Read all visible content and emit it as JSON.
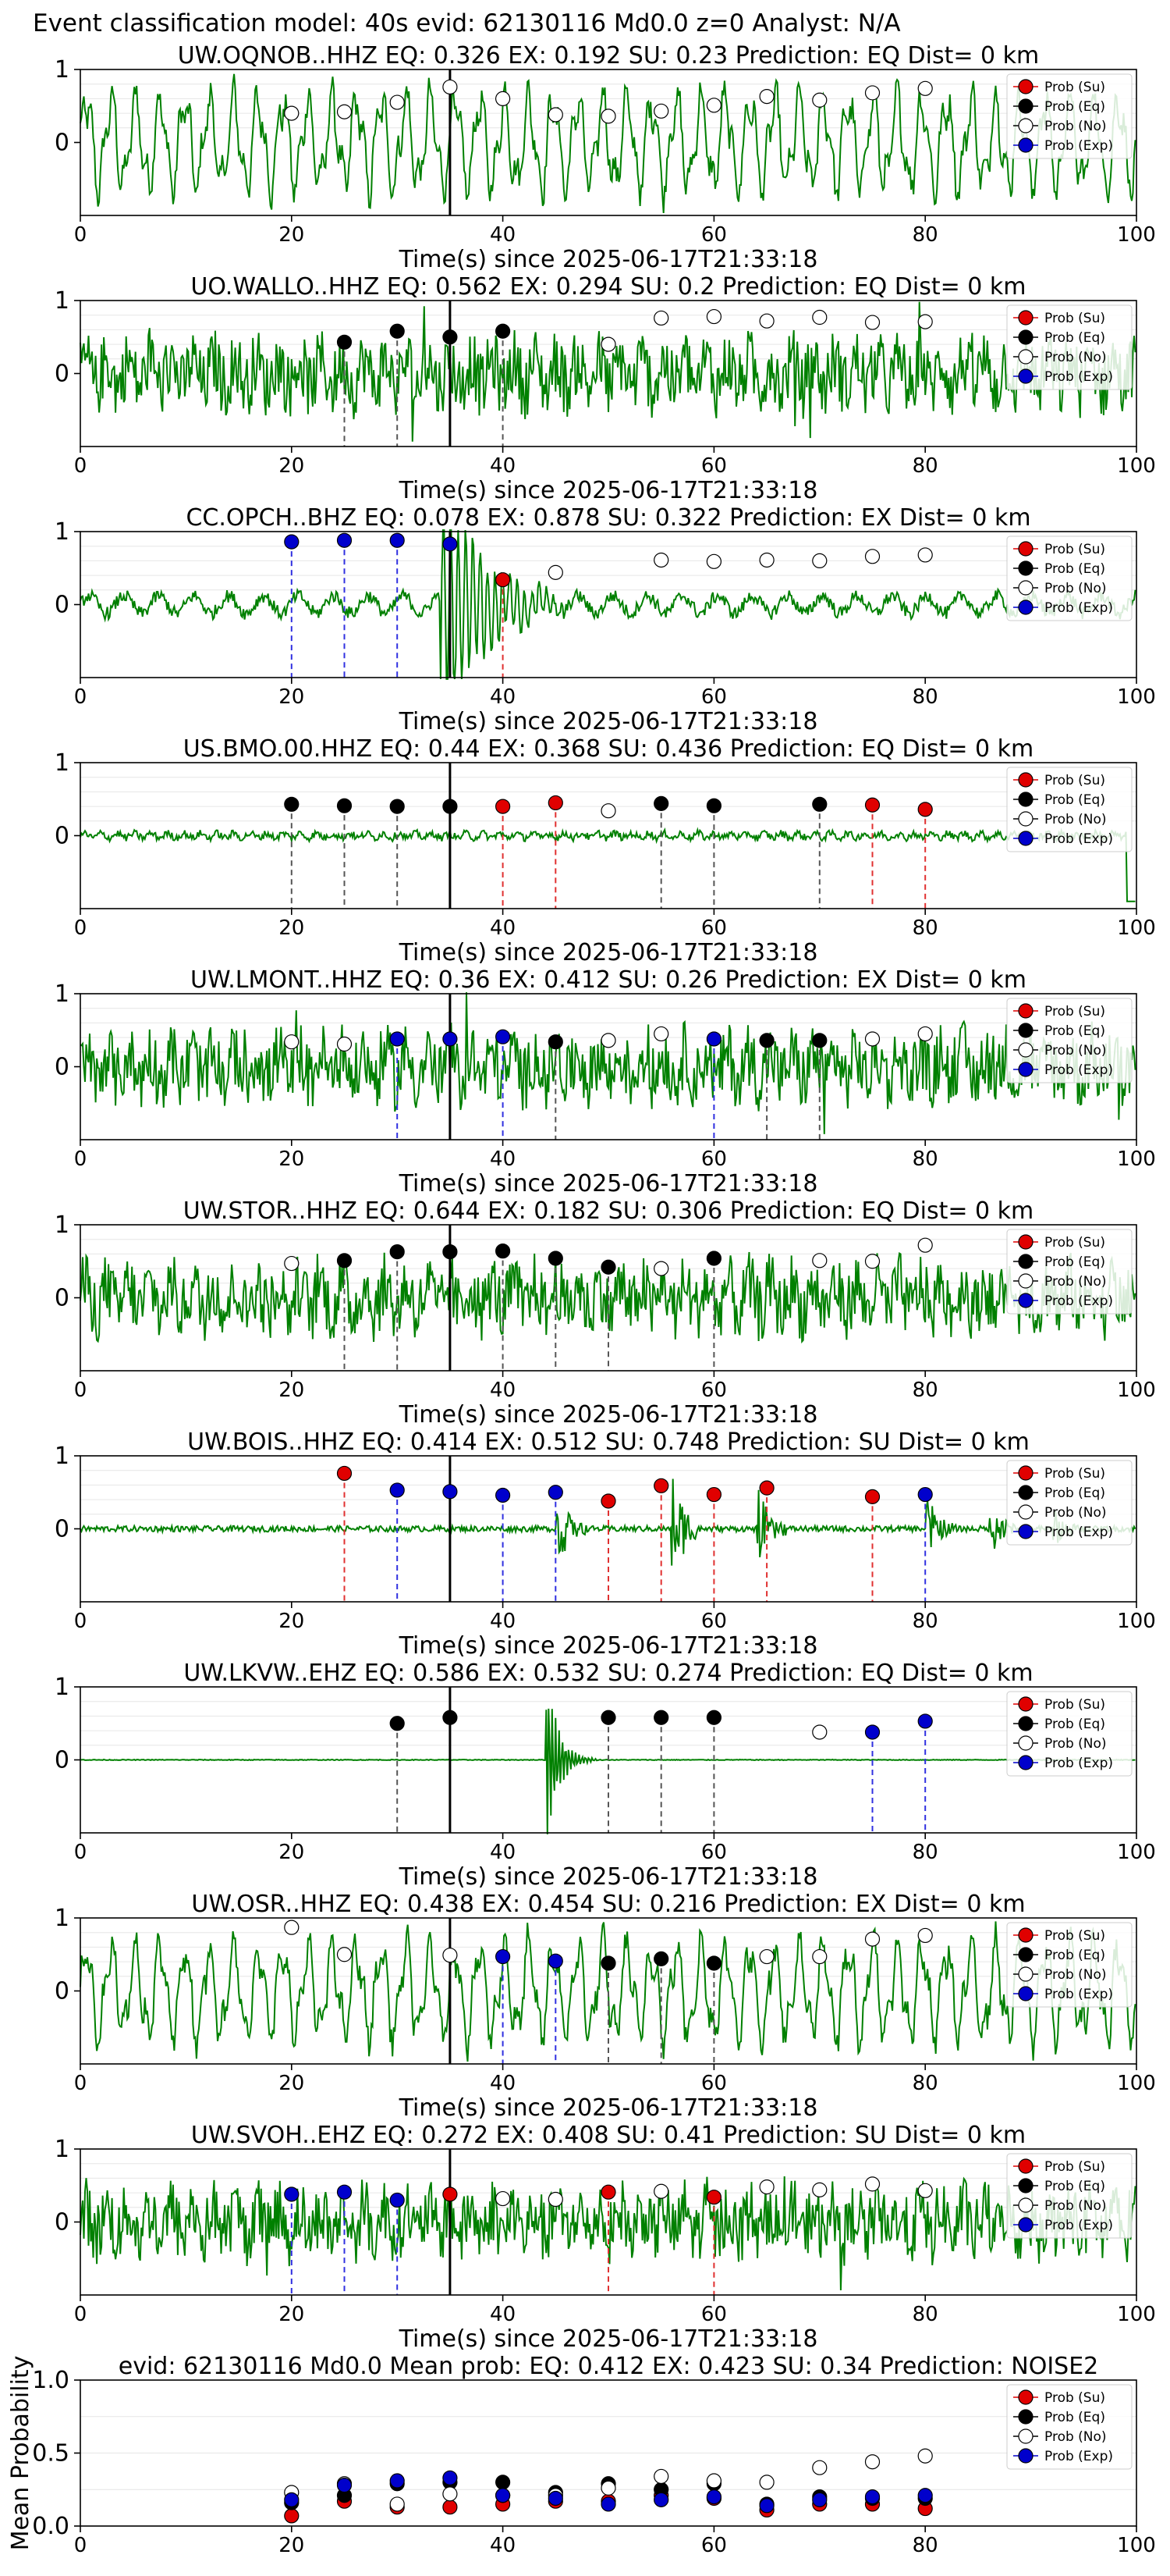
{
  "figure_title": "Event classification model: 40s evid: 62130116 Md0.0 z=0 Analyst: N/A",
  "legend_labels": [
    "Prob (Su)",
    "Prob (Eq)",
    "Prob (No)",
    "Prob (Exp)"
  ],
  "colors": {
    "su": "#e00000",
    "eq": "#000000",
    "no": "#ffffff",
    "exp": "#0000cc",
    "waveform": "#008000"
  },
  "x_label": "Time(s) since 2025-06-17T21:33:18",
  "chart_data": [
    {
      "type": "line",
      "title": "UW.OQNOB..HHZ   EQ: 0.326  EX: 0.192  SU: 0.23   Prediction: EQ    Dist= 0 km",
      "xlim": [
        0,
        100
      ],
      "xticks": [
        0,
        20,
        40,
        60,
        80,
        100
      ],
      "yticks": [
        0,
        1
      ],
      "ylim": [
        -1,
        1
      ],
      "xlabel": "Time(s) since 2025-06-17T21:33:18",
      "waveform_style": "oscillatory",
      "event_marker_time": 35,
      "probability_points": [
        {
          "t": 20,
          "prob": 0.4,
          "class": "no"
        },
        {
          "t": 25,
          "prob": 0.42,
          "class": "no"
        },
        {
          "t": 30,
          "prob": 0.55,
          "class": "no"
        },
        {
          "t": 35,
          "prob": 0.76,
          "class": "no"
        },
        {
          "t": 40,
          "prob": 0.6,
          "class": "no"
        },
        {
          "t": 45,
          "prob": 0.38,
          "class": "no"
        },
        {
          "t": 50,
          "prob": 0.36,
          "class": "no"
        },
        {
          "t": 55,
          "prob": 0.43,
          "class": "no"
        },
        {
          "t": 60,
          "prob": 0.51,
          "class": "no"
        },
        {
          "t": 65,
          "prob": 0.63,
          "class": "no"
        },
        {
          "t": 70,
          "prob": 0.58,
          "class": "no"
        },
        {
          "t": 75,
          "prob": 0.68,
          "class": "no"
        },
        {
          "t": 80,
          "prob": 0.74,
          "class": "no"
        }
      ]
    },
    {
      "type": "line",
      "title": "UO.WALLO..HHZ   EQ: 0.562  EX: 0.294  SU: 0.2   Prediction: EQ    Dist= 0 km",
      "xlim": [
        0,
        100
      ],
      "xticks": [
        0,
        20,
        40,
        60,
        80,
        100
      ],
      "yticks": [
        0,
        1
      ],
      "ylim": [
        -1,
        1
      ],
      "xlabel": "Time(s) since 2025-06-17T21:33:18",
      "waveform_style": "noisy",
      "event_marker_time": 35,
      "probability_points": [
        {
          "t": 25,
          "prob": 0.43,
          "class": "eq"
        },
        {
          "t": 30,
          "prob": 0.58,
          "class": "eq"
        },
        {
          "t": 35,
          "prob": 0.5,
          "class": "eq"
        },
        {
          "t": 40,
          "prob": 0.58,
          "class": "eq"
        },
        {
          "t": 50,
          "prob": 0.4,
          "class": "no"
        },
        {
          "t": 55,
          "prob": 0.76,
          "class": "no"
        },
        {
          "t": 60,
          "prob": 0.78,
          "class": "no"
        },
        {
          "t": 65,
          "prob": 0.72,
          "class": "no"
        },
        {
          "t": 70,
          "prob": 0.77,
          "class": "no"
        },
        {
          "t": 75,
          "prob": 0.7,
          "class": "no"
        },
        {
          "t": 80,
          "prob": 0.71,
          "class": "no"
        }
      ]
    },
    {
      "type": "line",
      "title": "CC.OPCH..BHZ   EQ: 0.078  EX: 0.878  SU: 0.322   Prediction: EX    Dist= 0 km",
      "xlim": [
        0,
        100
      ],
      "xticks": [
        0,
        20,
        40,
        60,
        80,
        100
      ],
      "yticks": [
        0,
        1
      ],
      "ylim": [
        -1,
        1
      ],
      "xlabel": "Time(s) since 2025-06-17T21:33:18",
      "waveform_style": "event",
      "event_marker_time": 35,
      "probability_points": [
        {
          "t": 20,
          "prob": 0.86,
          "class": "exp"
        },
        {
          "t": 25,
          "prob": 0.88,
          "class": "exp"
        },
        {
          "t": 30,
          "prob": 0.88,
          "class": "exp"
        },
        {
          "t": 35,
          "prob": 0.83,
          "class": "exp"
        },
        {
          "t": 40,
          "prob": 0.34,
          "class": "su"
        },
        {
          "t": 45,
          "prob": 0.44,
          "class": "no"
        },
        {
          "t": 55,
          "prob": 0.61,
          "class": "no"
        },
        {
          "t": 60,
          "prob": 0.59,
          "class": "no"
        },
        {
          "t": 65,
          "prob": 0.61,
          "class": "no"
        },
        {
          "t": 70,
          "prob": 0.6,
          "class": "no"
        },
        {
          "t": 75,
          "prob": 0.66,
          "class": "no"
        },
        {
          "t": 80,
          "prob": 0.68,
          "class": "no"
        }
      ]
    },
    {
      "type": "line",
      "title": "US.BMO.00.HHZ   EQ: 0.44  EX: 0.368  SU: 0.436   Prediction: EQ    Dist= 0 km",
      "xlim": [
        0,
        100
      ],
      "xticks": [
        0,
        20,
        40,
        60,
        80,
        100
      ],
      "yticks": [
        0,
        1
      ],
      "ylim": [
        -1,
        1
      ],
      "xlabel": "Time(s) since 2025-06-17T21:33:18",
      "waveform_style": "quiet",
      "event_marker_time": 35,
      "probability_points": [
        {
          "t": 20,
          "prob": 0.43,
          "class": "eq"
        },
        {
          "t": 25,
          "prob": 0.41,
          "class": "eq"
        },
        {
          "t": 30,
          "prob": 0.4,
          "class": "eq"
        },
        {
          "t": 35,
          "prob": 0.4,
          "class": "eq"
        },
        {
          "t": 40,
          "prob": 0.4,
          "class": "su"
        },
        {
          "t": 45,
          "prob": 0.45,
          "class": "su"
        },
        {
          "t": 50,
          "prob": 0.34,
          "class": "no"
        },
        {
          "t": 55,
          "prob": 0.44,
          "class": "eq"
        },
        {
          "t": 60,
          "prob": 0.41,
          "class": "eq"
        },
        {
          "t": 70,
          "prob": 0.43,
          "class": "eq"
        },
        {
          "t": 75,
          "prob": 0.42,
          "class": "su"
        },
        {
          "t": 80,
          "prob": 0.36,
          "class": "su"
        }
      ]
    },
    {
      "type": "line",
      "title": "UW.LMONT..HHZ   EQ: 0.36  EX: 0.412  SU: 0.26   Prediction: EX    Dist= 0 km",
      "xlim": [
        0,
        100
      ],
      "xticks": [
        0,
        20,
        40,
        60,
        80,
        100
      ],
      "yticks": [
        0,
        1
      ],
      "ylim": [
        -1,
        1
      ],
      "xlabel": "Time(s) since 2025-06-17T21:33:18",
      "waveform_style": "noisy",
      "event_marker_time": 35,
      "probability_points": [
        {
          "t": 20,
          "prob": 0.34,
          "class": "no"
        },
        {
          "t": 25,
          "prob": 0.31,
          "class": "no"
        },
        {
          "t": 30,
          "prob": 0.38,
          "class": "exp"
        },
        {
          "t": 35,
          "prob": 0.38,
          "class": "exp"
        },
        {
          "t": 40,
          "prob": 0.41,
          "class": "exp"
        },
        {
          "t": 45,
          "prob": 0.34,
          "class": "eq"
        },
        {
          "t": 50,
          "prob": 0.36,
          "class": "no"
        },
        {
          "t": 55,
          "prob": 0.45,
          "class": "no"
        },
        {
          "t": 60,
          "prob": 0.38,
          "class": "exp"
        },
        {
          "t": 65,
          "prob": 0.36,
          "class": "eq"
        },
        {
          "t": 70,
          "prob": 0.36,
          "class": "eq"
        },
        {
          "t": 75,
          "prob": 0.38,
          "class": "no"
        },
        {
          "t": 80,
          "prob": 0.45,
          "class": "no"
        }
      ]
    },
    {
      "type": "line",
      "title": "UW.STOR..HHZ   EQ: 0.644  EX: 0.182  SU: 0.306   Prediction: EQ    Dist= 0 km",
      "xlim": [
        0,
        100
      ],
      "xticks": [
        0,
        20,
        40,
        60,
        80,
        100
      ],
      "yticks": [
        0,
        1
      ],
      "ylim": [
        -1,
        1
      ],
      "xlabel": "Time(s) since 2025-06-17T21:33:18",
      "waveform_style": "noisy",
      "event_marker_time": 35,
      "probability_points": [
        {
          "t": 20,
          "prob": 0.47,
          "class": "no"
        },
        {
          "t": 25,
          "prob": 0.51,
          "class": "eq"
        },
        {
          "t": 30,
          "prob": 0.63,
          "class": "eq"
        },
        {
          "t": 35,
          "prob": 0.63,
          "class": "eq"
        },
        {
          "t": 40,
          "prob": 0.64,
          "class": "eq"
        },
        {
          "t": 45,
          "prob": 0.54,
          "class": "eq"
        },
        {
          "t": 50,
          "prob": 0.42,
          "class": "eq"
        },
        {
          "t": 55,
          "prob": 0.4,
          "class": "no"
        },
        {
          "t": 60,
          "prob": 0.54,
          "class": "eq"
        },
        {
          "t": 70,
          "prob": 0.51,
          "class": "no"
        },
        {
          "t": 75,
          "prob": 0.5,
          "class": "no"
        },
        {
          "t": 80,
          "prob": 0.72,
          "class": "no"
        }
      ]
    },
    {
      "type": "line",
      "title": "UW.BOIS..HHZ   EQ: 0.414  EX: 0.512  SU: 0.748   Prediction: SU    Dist= 0 km",
      "xlim": [
        0,
        100
      ],
      "xticks": [
        0,
        20,
        40,
        60,
        80,
        100
      ],
      "yticks": [
        0,
        1
      ],
      "ylim": [
        -1,
        1
      ],
      "xlabel": "Time(s) since 2025-06-17T21:33:18",
      "waveform_style": "bursty",
      "event_marker_time": 35,
      "probability_points": [
        {
          "t": 25,
          "prob": 0.76,
          "class": "su"
        },
        {
          "t": 30,
          "prob": 0.53,
          "class": "exp"
        },
        {
          "t": 35,
          "prob": 0.51,
          "class": "exp"
        },
        {
          "t": 40,
          "prob": 0.46,
          "class": "exp"
        },
        {
          "t": 45,
          "prob": 0.5,
          "class": "exp"
        },
        {
          "t": 50,
          "prob": 0.38,
          "class": "su"
        },
        {
          "t": 55,
          "prob": 0.59,
          "class": "su"
        },
        {
          "t": 60,
          "prob": 0.47,
          "class": "su"
        },
        {
          "t": 65,
          "prob": 0.56,
          "class": "su"
        },
        {
          "t": 75,
          "prob": 0.44,
          "class": "su"
        },
        {
          "t": 80,
          "prob": 0.47,
          "class": "exp"
        }
      ]
    },
    {
      "type": "line",
      "title": "UW.LKVW..EHZ   EQ: 0.586  EX: 0.532  SU: 0.274   Prediction: EQ    Dist= 0 km",
      "xlim": [
        0,
        100
      ],
      "xticks": [
        0,
        20,
        40,
        60,
        80,
        100
      ],
      "yticks": [
        0,
        1
      ],
      "ylim": [
        -1,
        1
      ],
      "xlabel": "Time(s) since 2025-06-17T21:33:18",
      "waveform_style": "flat",
      "event_marker_time": 35,
      "probability_points": [
        {
          "t": 30,
          "prob": 0.5,
          "class": "eq"
        },
        {
          "t": 35,
          "prob": 0.58,
          "class": "eq"
        },
        {
          "t": 50,
          "prob": 0.58,
          "class": "eq"
        },
        {
          "t": 55,
          "prob": 0.58,
          "class": "eq"
        },
        {
          "t": 60,
          "prob": 0.58,
          "class": "eq"
        },
        {
          "t": 70,
          "prob": 0.38,
          "class": "no"
        },
        {
          "t": 75,
          "prob": 0.38,
          "class": "exp"
        },
        {
          "t": 80,
          "prob": 0.53,
          "class": "exp"
        }
      ]
    },
    {
      "type": "line",
      "title": "UW.OSR..HHZ   EQ: 0.438  EX: 0.454  SU: 0.216   Prediction: EX    Dist= 0 km",
      "xlim": [
        0,
        100
      ],
      "xticks": [
        0,
        20,
        40,
        60,
        80,
        100
      ],
      "yticks": [
        0,
        1
      ],
      "ylim": [
        -1,
        1
      ],
      "xlabel": "Time(s) since 2025-06-17T21:33:18",
      "waveform_style": "oscillatory",
      "event_marker_time": 35,
      "probability_points": [
        {
          "t": 20,
          "prob": 0.87,
          "class": "no"
        },
        {
          "t": 25,
          "prob": 0.5,
          "class": "no"
        },
        {
          "t": 35,
          "prob": 0.49,
          "class": "no"
        },
        {
          "t": 40,
          "prob": 0.47,
          "class": "exp"
        },
        {
          "t": 45,
          "prob": 0.41,
          "class": "exp"
        },
        {
          "t": 50,
          "prob": 0.38,
          "class": "eq"
        },
        {
          "t": 55,
          "prob": 0.44,
          "class": "eq"
        },
        {
          "t": 60,
          "prob": 0.38,
          "class": "eq"
        },
        {
          "t": 65,
          "prob": 0.47,
          "class": "no"
        },
        {
          "t": 70,
          "prob": 0.47,
          "class": "no"
        },
        {
          "t": 75,
          "prob": 0.71,
          "class": "no"
        },
        {
          "t": 80,
          "prob": 0.76,
          "class": "no"
        }
      ]
    },
    {
      "type": "line",
      "title": "UW.SVOH..EHZ   EQ: 0.272  EX: 0.408  SU: 0.41   Prediction: SU    Dist= 0 km",
      "xlim": [
        0,
        100
      ],
      "xticks": [
        0,
        20,
        40,
        60,
        80,
        100
      ],
      "yticks": [
        0,
        1
      ],
      "ylim": [
        -1,
        1
      ],
      "xlabel": "Time(s) since 2025-06-17T21:33:18",
      "waveform_style": "noisy",
      "event_marker_time": 35,
      "probability_points": [
        {
          "t": 20,
          "prob": 0.38,
          "class": "exp"
        },
        {
          "t": 25,
          "prob": 0.41,
          "class": "exp"
        },
        {
          "t": 30,
          "prob": 0.3,
          "class": "exp"
        },
        {
          "t": 35,
          "prob": 0.38,
          "class": "su"
        },
        {
          "t": 40,
          "prob": 0.32,
          "class": "no"
        },
        {
          "t": 45,
          "prob": 0.31,
          "class": "no"
        },
        {
          "t": 50,
          "prob": 0.41,
          "class": "su"
        },
        {
          "t": 55,
          "prob": 0.42,
          "class": "no"
        },
        {
          "t": 60,
          "prob": 0.34,
          "class": "su"
        },
        {
          "t": 65,
          "prob": 0.48,
          "class": "no"
        },
        {
          "t": 70,
          "prob": 0.44,
          "class": "no"
        },
        {
          "t": 75,
          "prob": 0.52,
          "class": "no"
        },
        {
          "t": 80,
          "prob": 0.43,
          "class": "no"
        }
      ]
    },
    {
      "type": "scatter",
      "title": "evid: 62130116  Md0.0   Mean prob:   EQ: 0.412  EX: 0.423  SU: 0.34   Prediction: NOISE2",
      "xlim": [
        0,
        100
      ],
      "xticks": [
        0,
        20,
        40,
        60,
        80,
        100
      ],
      "ylim": [
        0,
        1.0
      ],
      "yticks": [
        0.0,
        0.5,
        1.0
      ],
      "ylabel": "Mean Probability",
      "x": [
        20,
        25,
        30,
        35,
        40,
        45,
        50,
        55,
        60,
        65,
        70,
        75,
        80
      ],
      "series": [
        {
          "name": "Prob (Su)",
          "color": "su",
          "values": [
            0.07,
            0.17,
            0.13,
            0.13,
            0.15,
            0.17,
            0.17,
            0.21,
            0.19,
            0.11,
            0.15,
            0.15,
            0.12
          ]
        },
        {
          "name": "Prob (Eq)",
          "color": "eq",
          "values": [
            0.16,
            0.21,
            0.29,
            0.3,
            0.3,
            0.23,
            0.29,
            0.25,
            0.29,
            0.15,
            0.2,
            0.19,
            0.19
          ]
        },
        {
          "name": "Prob (No)",
          "color": "no",
          "values": [
            0.23,
            0.29,
            0.15,
            0.22,
            0.21,
            0.21,
            0.26,
            0.34,
            0.31,
            0.3,
            0.4,
            0.44,
            0.48
          ]
        },
        {
          "name": "Prob (Exp)",
          "color": "exp",
          "values": [
            0.18,
            0.28,
            0.31,
            0.33,
            0.21,
            0.19,
            0.15,
            0.18,
            0.2,
            0.14,
            0.18,
            0.2,
            0.21
          ]
        }
      ]
    }
  ]
}
